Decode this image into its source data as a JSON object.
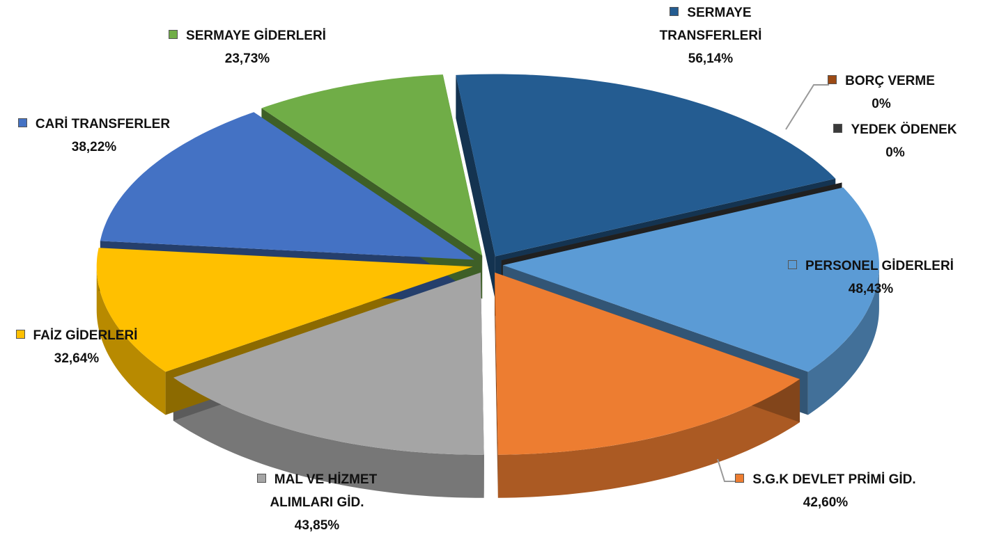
{
  "chart_data": {
    "type": "pie",
    "categories": [
      "SERMAYE TRANSFERLERİ",
      "BORÇ VERME",
      "YEDEK ÖDENEK",
      "PERSONEL GİDERLERİ",
      "S.G.K DEVLET PRİMİ GİD.",
      "MAL VE HİZMET ALIMLARI GİD.",
      "FAİZ GİDERLERİ",
      "CARİ TRANSFERLER",
      "SERMAYE GİDERLERİ"
    ],
    "values": [
      56.14,
      0,
      0,
      48.43,
      42.6,
      43.85,
      32.64,
      38.22,
      23.73
    ],
    "value_labels": [
      "56,14%",
      "0%",
      "0%",
      "48,43%",
      "42,60%",
      "43,85%",
      "32,64%",
      "38,22%",
      "23,73%"
    ],
    "colors": [
      "#245c91",
      "#9c4a14",
      "#3a3a3a",
      "#5b9bd5",
      "#ed7d31",
      "#a5a5a5",
      "#ffc000",
      "#4472c4",
      "#70ad47"
    ]
  }
}
